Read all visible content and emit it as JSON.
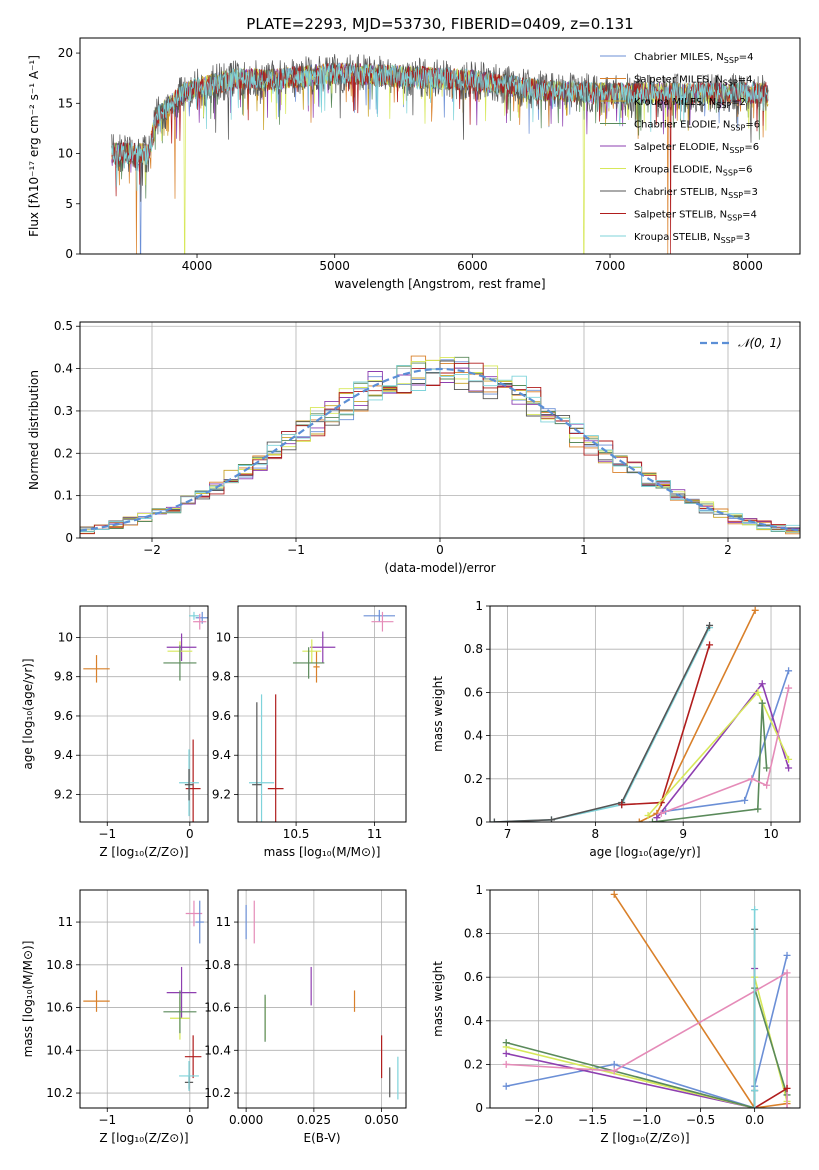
{
  "colors": {
    "Chabrier MILES": "#6b8fd6",
    "Salpeter MILES": "#d9802a",
    "Kroupa MILES": "#c9a227",
    "Chabrier ELODIE": "#5a8a5a",
    "Salpeter ELODIE": "#8e3fb0",
    "Kroupa ELODIE": "#d7e85a",
    "Chabrier STELIB": "#555555",
    "Salpeter STELIB": "#b01d1d",
    "Kroupa STELIB": "#7fd3da",
    "extra_pink": "#e58bb8",
    "gauss": "#5b8fd6"
  },
  "chart_data": [
    {
      "id": "spectrum",
      "type": "line",
      "title": "PLATE=2293, MJD=53730, FIBERID=0409, z=0.131",
      "xlabel": "wavelength [Angstrom, rest frame]",
      "ylabel": "Flux [fλ10⁻¹⁷ erg cm⁻² s⁻¹ A⁻¹]",
      "xlim": [
        3150,
        8380
      ],
      "ylim": [
        0,
        21.5
      ],
      "xticks": [
        4000,
        5000,
        6000,
        7000,
        8000
      ],
      "yticks": [
        0,
        5,
        10,
        15,
        20
      ],
      "grid": false,
      "legend": "upper-right",
      "legend_entries": [
        {
          "pre": "Chabrier MILES, N",
          "sub": "SSP",
          "post": "=4"
        },
        {
          "pre": "Salpeter MILES, N",
          "sub": "SSP",
          "post": "=4"
        },
        {
          "pre": "Kroupa MILES, N",
          "sub": "SSP",
          "post": "=2"
        },
        {
          "pre": "Chabrier ELODIE, N",
          "sub": "SSP",
          "post": "=6"
        },
        {
          "pre": "Salpeter ELODIE, N",
          "sub": "SSP",
          "post": "=6"
        },
        {
          "pre": "Kroupa ELODIE, N",
          "sub": "SSP",
          "post": "=6"
        },
        {
          "pre": "Chabrier STELIB, N",
          "sub": "SSP",
          "post": "=3"
        },
        {
          "pre": "Salpeter STELIB, N",
          "sub": "SSP",
          "post": "=4"
        },
        {
          "pre": "Kroupa STELIB, N",
          "sub": "SSP",
          "post": "=3"
        }
      ],
      "continuum": [
        [
          3380,
          10.0
        ],
        [
          3500,
          10.0
        ],
        [
          3650,
          9.9
        ],
        [
          3700,
          13.5
        ],
        [
          3900,
          16.0
        ],
        [
          4000,
          16.5
        ],
        [
          4300,
          17.5
        ],
        [
          4500,
          17.3
        ],
        [
          5000,
          18.0
        ],
        [
          5500,
          17.7
        ],
        [
          6000,
          17.3
        ],
        [
          6500,
          16.3
        ],
        [
          7000,
          16.0
        ],
        [
          7500,
          16.0
        ],
        [
          8000,
          16.0
        ],
        [
          8150,
          16.0
        ]
      ],
      "dips": [
        {
          "x": 3560,
          "series": 1,
          "y": 0
        },
        {
          "x": 3590,
          "series": 0,
          "y": 0
        },
        {
          "x": 3910,
          "series": 5,
          "y": 0
        },
        {
          "x": 6810,
          "series": 5,
          "y": 0
        },
        {
          "x": 7420,
          "series": 1,
          "y": 0
        },
        {
          "x": 7440,
          "series": 7,
          "y": 0
        },
        {
          "x": 3840,
          "series": 1,
          "y": 5.5
        }
      ]
    },
    {
      "id": "residuals",
      "type": "histogram",
      "xlabel": "(data-model)/error",
      "ylabel": "Normed distribution",
      "xlim": [
        -2.5,
        2.5
      ],
      "ylim": [
        0,
        0.51
      ],
      "xticks": [
        -2,
        -1,
        0,
        1,
        2
      ],
      "yticks": [
        0,
        0.1,
        0.2,
        0.3,
        0.4,
        0.5
      ],
      "grid": true,
      "legend": "upper-right",
      "legend_label": "𝒩(0, 1)",
      "bin_width": 0.1
    },
    {
      "id": "age_vs_Z",
      "type": "errorbar",
      "xlabel": "Z [log₁₀(Z/Z⊙)]",
      "ylabel": "age  [log₁₀(age/yr)]",
      "xlim": [
        -1.33,
        0.22
      ],
      "ylim": [
        9.06,
        10.16
      ],
      "xticks": [
        -1,
        0
      ],
      "yticks": [
        9.2,
        9.4,
        9.6,
        9.8,
        10.0
      ],
      "grid": true,
      "points": [
        {
          "c": "Salpeter MILES",
          "x": -1.13,
          "y": 9.84,
          "ex": 0.16,
          "ey": 0.07
        },
        {
          "c": "Salpeter ELODIE",
          "x": -0.1,
          "y": 9.95,
          "ex": 0.18,
          "ey": 0.07
        },
        {
          "c": "Kroupa ELODIE",
          "x": -0.12,
          "y": 9.93,
          "ex": 0.15,
          "ey": 0.05
        },
        {
          "c": "Chabrier ELODIE",
          "x": -0.12,
          "y": 9.87,
          "ex": 0.2,
          "ey": 0.09
        },
        {
          "c": "Salpeter STELIB",
          "x": 0.04,
          "y": 9.23,
          "ex": 0.09,
          "ey": 0.25
        },
        {
          "c": "Kroupa STELIB",
          "x": -0.01,
          "y": 9.26,
          "ex": 0.12,
          "ey": 0.17
        },
        {
          "c": "Chabrier STELIB",
          "x": -0.01,
          "y": 9.25,
          "ex": 0.05,
          "ey": 0.08
        },
        {
          "c": "Chabrier MILES",
          "x": 0.15,
          "y": 10.1,
          "ex": 0.08,
          "ey": 0.03
        },
        {
          "c": "extra_pink",
          "x": 0.12,
          "y": 10.08,
          "ex": 0.08,
          "ey": 0.04
        },
        {
          "c": "Kroupa STELIB",
          "x": 0.05,
          "y": 10.11,
          "ex": 0.06,
          "ey": 0.02
        }
      ]
    },
    {
      "id": "age_vs_mass",
      "type": "errorbar",
      "xlabel": "mass [log₁₀(M/M⊙)]",
      "ylabel": "",
      "xlim": [
        10.13,
        11.2
      ],
      "ylim": [
        9.06,
        10.16
      ],
      "xticks": [
        10.5,
        11.0
      ],
      "yticks": [
        9.2,
        9.4,
        9.6,
        9.8,
        10.0
      ],
      "grid": true,
      "points": [
        {
          "c": "Salpeter MILES",
          "x": 10.63,
          "y": 9.85,
          "ex": 0.02,
          "ey": 0.08
        },
        {
          "c": "Salpeter ELODIE",
          "x": 10.67,
          "y": 9.95,
          "ex": 0.08,
          "ey": 0.08
        },
        {
          "c": "Kroupa ELODIE",
          "x": 10.6,
          "y": 9.93,
          "ex": 0.06,
          "ey": 0.06
        },
        {
          "c": "Chabrier ELODIE",
          "x": 10.58,
          "y": 9.87,
          "ex": 0.1,
          "ey": 0.08
        },
        {
          "c": "Salpeter STELIB",
          "x": 10.37,
          "y": 9.23,
          "ex": 0.05,
          "ey": 0.48
        },
        {
          "c": "Kroupa STELIB",
          "x": 10.28,
          "y": 9.26,
          "ex": 0.08,
          "ey": 0.45
        },
        {
          "c": "Chabrier STELIB",
          "x": 10.25,
          "y": 9.25,
          "ex": 0.03,
          "ey": 0.42
        },
        {
          "c": "Chabrier MILES",
          "x": 11.03,
          "y": 10.11,
          "ex": 0.1,
          "ey": 0.03
        },
        {
          "c": "extra_pink",
          "x": 11.05,
          "y": 10.08,
          "ex": 0.07,
          "ey": 0.05
        }
      ]
    },
    {
      "id": "weight_vs_age",
      "type": "line",
      "xlabel": "age  [log₁₀(age/yr)]",
      "ylabel": "mass weight",
      "xlim": [
        6.8,
        10.33
      ],
      "ylim": [
        0,
        1.0
      ],
      "xticks": [
        7,
        8,
        9,
        10
      ],
      "yticks": [
        0.0,
        0.2,
        0.4,
        0.6,
        0.8,
        1.0
      ],
      "grid": true,
      "series": [
        {
          "c": "Kroupa STELIB",
          "x": [
            6.85,
            7.5,
            8.3,
            9.3
          ],
          "y": [
            0.0,
            0.01,
            0.08,
            0.9
          ]
        },
        {
          "c": "Chabrier STELIB",
          "x": [
            6.85,
            7.5,
            8.3,
            9.3
          ],
          "y": [
            0.0,
            0.01,
            0.09,
            0.91
          ]
        },
        {
          "c": "Salpeter MILES",
          "x": [
            8.5,
            8.7,
            9.82
          ],
          "y": [
            0.0,
            0.04,
            0.98
          ]
        },
        {
          "c": "Salpeter STELIB",
          "x": [
            8.3,
            8.75,
            9.3
          ],
          "y": [
            0.08,
            0.09,
            0.82
          ]
        },
        {
          "c": "Chabrier MILES",
          "x": [
            8.8,
            9.7,
            10.2
          ],
          "y": [
            0.05,
            0.1,
            0.7
          ]
        },
        {
          "c": "Salpeter ELODIE",
          "x": [
            8.7,
            9.9,
            10.2
          ],
          "y": [
            0.02,
            0.64,
            0.25
          ]
        },
        {
          "c": "Kroupa ELODIE",
          "x": [
            8.6,
            9.85,
            10.2
          ],
          "y": [
            0.03,
            0.6,
            0.29
          ]
        },
        {
          "c": "Chabrier ELODIE",
          "x": [
            8.65,
            9.85,
            9.9,
            9.95
          ],
          "y": [
            0.0,
            0.06,
            0.55,
            0.25
          ]
        },
        {
          "c": "extra_pink",
          "x": [
            8.75,
            9.78,
            9.95,
            10.2
          ],
          "y": [
            0.04,
            0.2,
            0.17,
            0.62
          ]
        }
      ]
    },
    {
      "id": "mass_vs_Z",
      "type": "errorbar",
      "xlabel": "Z [log₁₀(Z/Z⊙)]",
      "ylabel": "mass [log₁₀(M/M⊙)]",
      "xlim": [
        -1.33,
        0.22
      ],
      "ylim": [
        10.13,
        11.15
      ],
      "xticks": [
        -1,
        0
      ],
      "yticks": [
        10.2,
        10.4,
        10.6,
        10.8,
        11.0
      ],
      "grid": true,
      "points": [
        {
          "c": "Salpeter MILES",
          "x": -1.13,
          "y": 10.63,
          "ex": 0.16,
          "ey": 0.05
        },
        {
          "c": "Salpeter ELODIE",
          "x": -0.1,
          "y": 10.67,
          "ex": 0.18,
          "ey": 0.12
        },
        {
          "c": "Kroupa ELODIE",
          "x": -0.12,
          "y": 10.55,
          "ex": 0.12,
          "ey": 0.1
        },
        {
          "c": "Chabrier ELODIE",
          "x": -0.12,
          "y": 10.58,
          "ex": 0.2,
          "ey": 0.1
        },
        {
          "c": "Salpeter STELIB",
          "x": 0.04,
          "y": 10.37,
          "ex": 0.1,
          "ey": 0.1
        },
        {
          "c": "Chabrier STELIB",
          "x": -0.01,
          "y": 10.25,
          "ex": 0.05,
          "ey": 0.03
        },
        {
          "c": "Kroupa STELIB",
          "x": -0.01,
          "y": 10.28,
          "ex": 0.12,
          "ey": 0.07
        },
        {
          "c": "extra_pink",
          "x": 0.05,
          "y": 11.04,
          "ex": 0.1,
          "ey": 0.06
        },
        {
          "c": "Chabrier MILES",
          "x": 0.12,
          "y": 11.0,
          "ex": 0.05,
          "ey": 0.1
        }
      ]
    },
    {
      "id": "mass_vs_ebv",
      "type": "errorbar",
      "xlabel": "E(B-V)",
      "ylabel": "",
      "xlim": [
        -0.003,
        0.059
      ],
      "ylim": [
        10.13,
        11.15
      ],
      "xticks": [
        0.0,
        0.025,
        0.05
      ],
      "xtick_labels": [
        "0.000",
        "0.025",
        "0.050"
      ],
      "yticks": [
        10.2,
        10.4,
        10.6,
        10.8,
        11.0
      ],
      "grid": true,
      "points": [
        {
          "c": "Chabrier MILES",
          "x": 0.0,
          "y": 11.0,
          "ex": 0,
          "ey": 0.08
        },
        {
          "c": "extra_pink",
          "x": 0.003,
          "y": 11.0,
          "ex": 0,
          "ey": 0.1
        },
        {
          "c": "Kroupa ELODIE",
          "x": 0.007,
          "y": 10.55,
          "ex": 0,
          "ey": 0.1
        },
        {
          "c": "Chabrier ELODIE",
          "x": 0.007,
          "y": 10.55,
          "ex": 0,
          "ey": 0.11
        },
        {
          "c": "Salpeter ELODIE",
          "x": 0.024,
          "y": 10.7,
          "ex": 0,
          "ey": 0.09
        },
        {
          "c": "Salpeter MILES",
          "x": 0.04,
          "y": 10.63,
          "ex": 0,
          "ey": 0.05
        },
        {
          "c": "Salpeter STELIB",
          "x": 0.05,
          "y": 10.37,
          "ex": 0,
          "ey": 0.1
        },
        {
          "c": "Chabrier STELIB",
          "x": 0.053,
          "y": 10.25,
          "ex": 0,
          "ey": 0.07
        },
        {
          "c": "Kroupa STELIB",
          "x": 0.056,
          "y": 10.27,
          "ex": 0,
          "ey": 0.1
        }
      ]
    },
    {
      "id": "weight_vs_Z",
      "type": "line",
      "xlabel": "Z [log₁₀(Z/Z⊙)]",
      "ylabel": "mass weight",
      "xlim": [
        -2.45,
        0.42
      ],
      "ylim": [
        0,
        1.0
      ],
      "xticks": [
        -2.0,
        -1.5,
        -1.0,
        -0.5,
        0.0
      ],
      "xtick_labels": [
        "−2.0",
        "−1.5",
        "−1.0",
        "−0.5",
        "0.0"
      ],
      "yticks": [
        0.0,
        0.2,
        0.4,
        0.6,
        0.8,
        1.0
      ],
      "grid": true,
      "series": [
        {
          "c": "Salpeter MILES",
          "x": [
            -1.3,
            0.0,
            0.3
          ],
          "y": [
            0.98,
            0.0,
            0.02
          ]
        },
        {
          "c": "Chabrier MILES",
          "x": [
            -2.3,
            -1.3,
            0.0,
            0.0,
            0.3
          ],
          "y": [
            0.1,
            0.2,
            0.0,
            0.1,
            0.7
          ]
        },
        {
          "c": "Salpeter ELODIE",
          "x": [
            -2.3,
            0.0,
            0.0
          ],
          "y": [
            0.25,
            0.0,
            0.64
          ]
        },
        {
          "c": "Kroupa ELODIE",
          "x": [
            -2.3,
            0.0,
            0.0,
            0.3
          ],
          "y": [
            0.28,
            0.0,
            0.6,
            0.03
          ]
        },
        {
          "c": "Chabrier ELODIE",
          "x": [
            -2.3,
            0.0,
            0.0,
            0.3
          ],
          "y": [
            0.3,
            0.0,
            0.55,
            0.06
          ]
        },
        {
          "c": "extra_pink",
          "x": [
            -2.3,
            -1.3,
            0.3,
            0.3
          ],
          "y": [
            0.2,
            0.17,
            0.62,
            0.0
          ]
        },
        {
          "c": "Chabrier STELIB",
          "x": [
            0.0,
            0.0,
            0.0
          ],
          "y": [
            0.08,
            0.82,
            0.0
          ]
        },
        {
          "c": "Salpeter STELIB",
          "x": [
            0.0,
            0.3
          ],
          "y": [
            0.0,
            0.09
          ]
        },
        {
          "c": "Kroupa STELIB",
          "x": [
            0.0,
            0.0,
            0.0
          ],
          "y": [
            0.0,
            0.91,
            0.08
          ]
        }
      ]
    }
  ]
}
